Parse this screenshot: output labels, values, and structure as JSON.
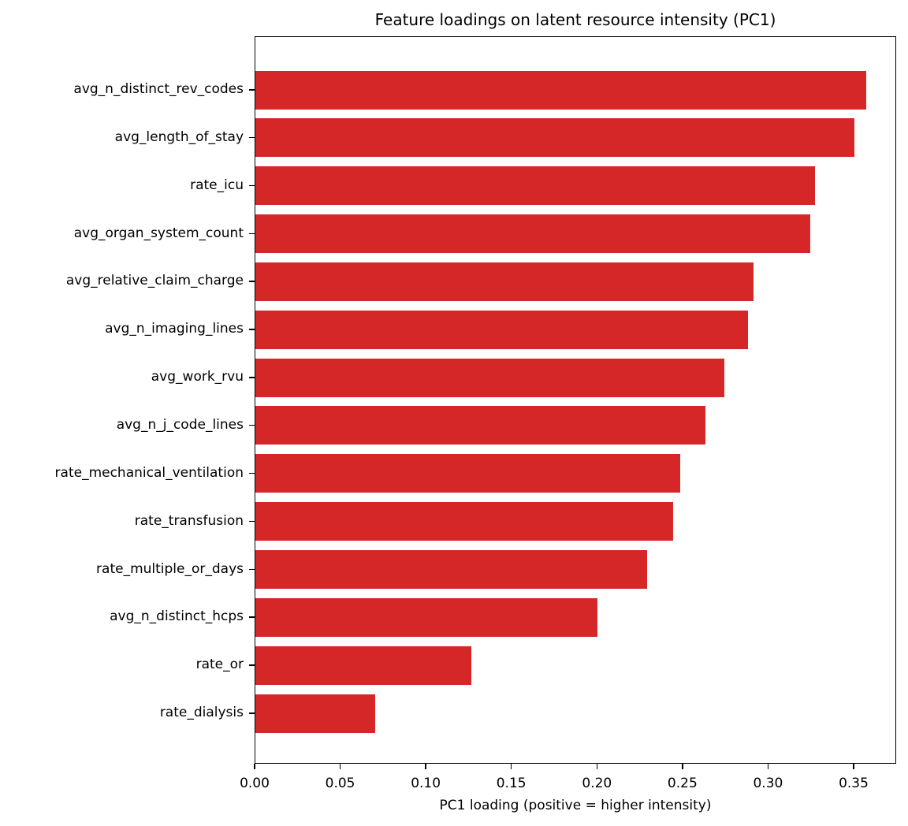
{
  "chart_data": {
    "type": "bar",
    "orientation": "horizontal",
    "title": "Feature loadings on latent resource intensity (PC1)",
    "xlabel": "PC1 loading (positive = higher intensity)",
    "ylabel": "",
    "xlim": [
      0.0,
      0.375
    ],
    "xticks": [
      "0.00",
      "0.05",
      "0.10",
      "0.15",
      "0.20",
      "0.25",
      "0.30",
      "0.35"
    ],
    "grid": false,
    "legend": null,
    "bar_color": "#d62728",
    "categories": [
      "avg_n_distinct_rev_codes",
      "avg_length_of_stay",
      "rate_icu",
      "avg_organ_system_count",
      "avg_relative_claim_charge",
      "avg_n_imaging_lines",
      "avg_work_rvu",
      "avg_n_j_code_lines",
      "rate_mechanical_ventilation",
      "rate_transfusion",
      "rate_multiple_or_days",
      "avg_n_distinct_hcps",
      "rate_or",
      "rate_dialysis"
    ],
    "values": [
      0.357,
      0.35,
      0.327,
      0.324,
      0.291,
      0.288,
      0.274,
      0.263,
      0.248,
      0.244,
      0.229,
      0.2,
      0.126,
      0.07
    ]
  }
}
